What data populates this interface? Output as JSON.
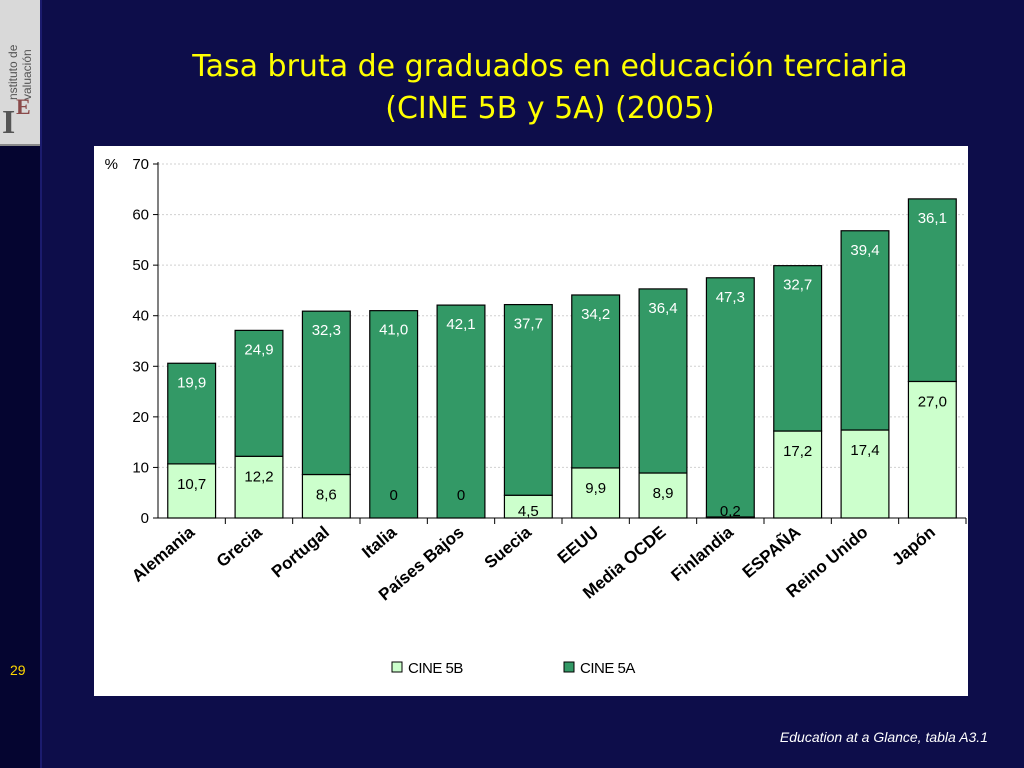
{
  "title_line1": "Tasa bruta de graduados en educación terciaria",
  "title_line2": "(CINE 5B y 5A) (2005)",
  "slide_number": "29",
  "source": "Education at a Glance, tabla A3.1",
  "logo": {
    "word1": "nstituto de",
    "word2": "valuación",
    "letter_i": "I",
    "letter_e": "E"
  },
  "chart_data": {
    "type": "bar",
    "stacked": true,
    "ylabel": "%",
    "ylim": [
      0,
      70
    ],
    "yticks": [
      0,
      10,
      20,
      30,
      40,
      50,
      60,
      70
    ],
    "categories": [
      "Alemania",
      "Grecia",
      "Portugal",
      "Italia",
      "Países Bajos",
      "Suecia",
      "EEUU",
      "Media OCDE",
      "Finlandia",
      "ESPAÑA",
      "Reino Unido",
      "Japón"
    ],
    "series": [
      {
        "name": "CINE 5B",
        "color": "#ccffcc",
        "values": [
          10.7,
          12.2,
          8.6,
          0,
          0,
          4.5,
          9.9,
          8.9,
          0.2,
          17.2,
          17.4,
          27.0
        ],
        "labels": [
          "10,7",
          "12,2",
          "8,6",
          "0",
          "0",
          "4,5",
          "9,9",
          "8,9",
          "0,2",
          "17,2",
          "17,4",
          "27,0"
        ]
      },
      {
        "name": "CINE 5A",
        "color": "#339966",
        "values": [
          19.9,
          24.9,
          32.3,
          41.0,
          42.1,
          37.7,
          34.2,
          36.4,
          47.3,
          32.7,
          39.4,
          36.1
        ],
        "labels": [
          "19,9",
          "24,9",
          "32,3",
          "41,0",
          "42,1",
          "37,7",
          "34,2",
          "36,4",
          "47,3",
          "32,7",
          "39,4",
          "36,1"
        ]
      }
    ],
    "legend_position": "bottom",
    "grid": true
  }
}
